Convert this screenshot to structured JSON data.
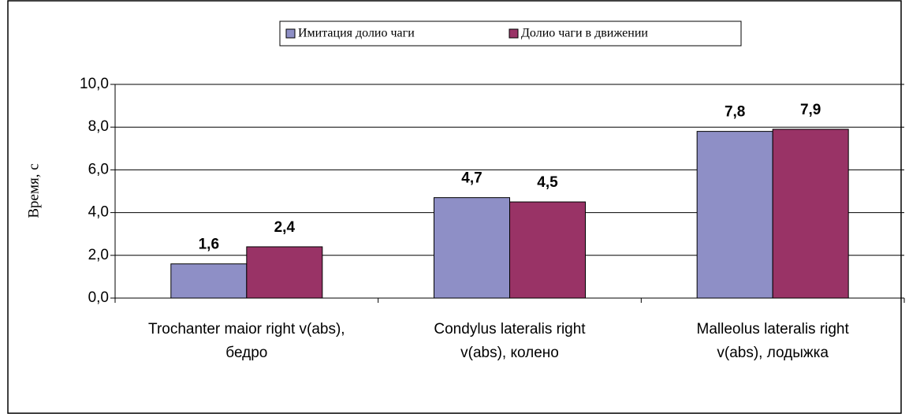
{
  "chart_data": {
    "type": "bar",
    "y_label": "Время, с",
    "categories": [
      "Trochanter maior right v(abs), бедро",
      "Condylus lateralis right v(abs), колено",
      "Malleolus lateralis right v(abs), лодыжка"
    ],
    "series": [
      {
        "name": "Имитация долио чаги",
        "color": "#8e8fc6",
        "values": [
          1.6,
          4.7,
          7.8
        ],
        "value_labels": [
          "1,6",
          "4,7",
          "7,8"
        ]
      },
      {
        "name": "Долио чаги в движении",
        "color": "#993366",
        "values": [
          2.4,
          4.5,
          7.9
        ],
        "value_labels": [
          "2,4",
          "4,5",
          "7,9"
        ]
      }
    ],
    "ylim": [
      0,
      10
    ],
    "yticks": [
      {
        "value": 0,
        "label": "0,0"
      },
      {
        "value": 2,
        "label": "2,0"
      },
      {
        "value": 4,
        "label": "4,0"
      },
      {
        "value": 6,
        "label": "6,0"
      },
      {
        "value": 8,
        "label": "8,0"
      },
      {
        "value": 10,
        "label": "10,0"
      }
    ],
    "grid": true,
    "legend": "top"
  }
}
